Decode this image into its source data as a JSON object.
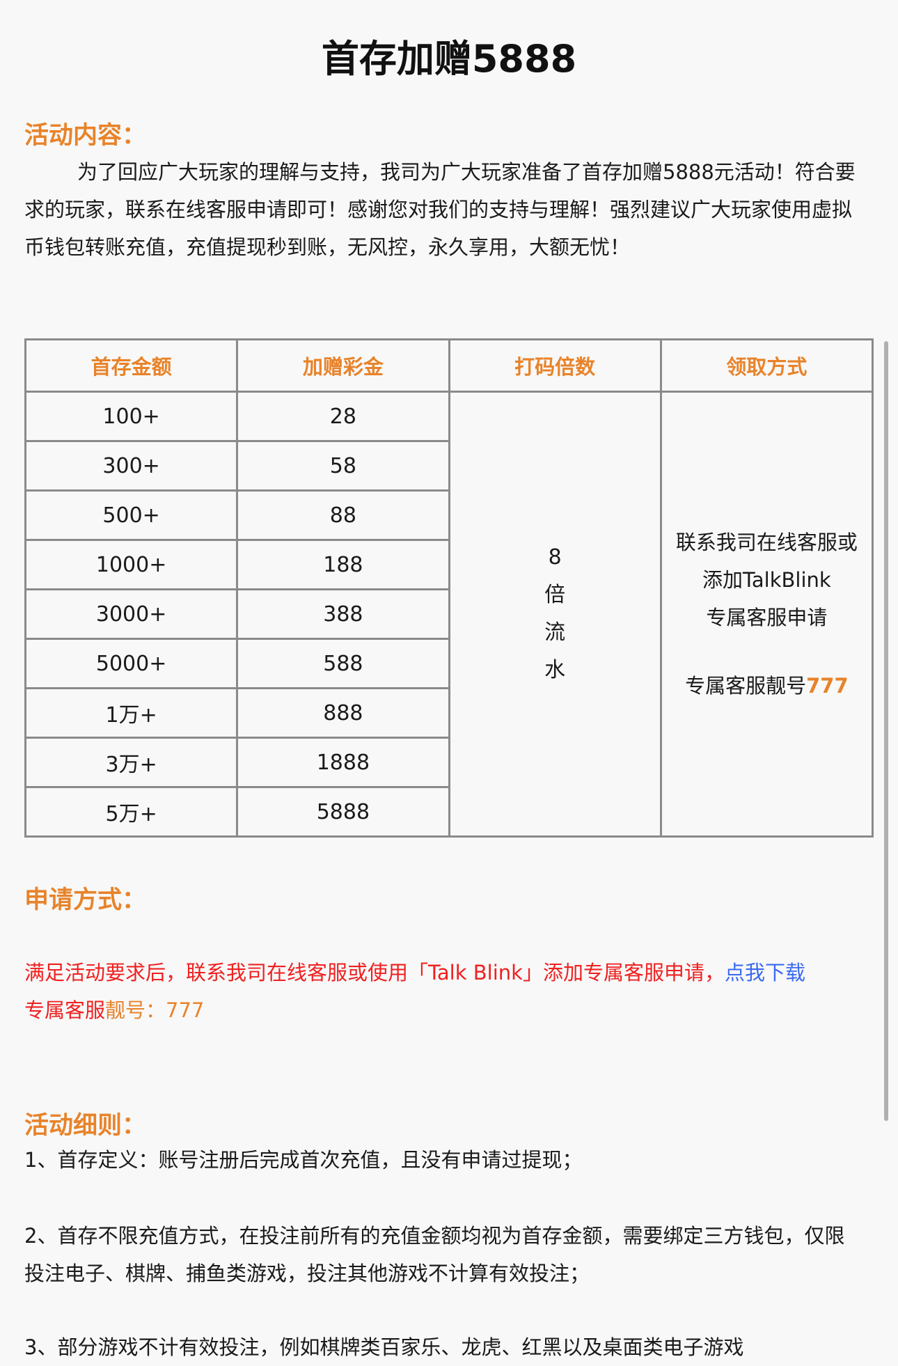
{
  "title": "首存加赠5888",
  "activity": {
    "heading": "活动内容：",
    "text": "为了回应广大玩家的理解与支持，我司为广大玩家准备了首存加赠5888元活动！符合要求的玩家，联系在线客服申请即可！感谢您对我们的支持与理解！强烈建议广大玩家使用虚拟币钱包转账充值，充值提现秒到账，无风控，永久享用，大额无忧！"
  },
  "table": {
    "headers": [
      "首存金额",
      "加赠彩金",
      "打码倍数",
      "领取方式"
    ],
    "rows": [
      {
        "deposit": "100+",
        "bonus": "28"
      },
      {
        "deposit": "300+",
        "bonus": "58"
      },
      {
        "deposit": "500+",
        "bonus": "88"
      },
      {
        "deposit": "1000+",
        "bonus": "188"
      },
      {
        "deposit": "3000+",
        "bonus": "388"
      },
      {
        "deposit": "5000+",
        "bonus": "588"
      },
      {
        "deposit": "1万+",
        "bonus": "888"
      },
      {
        "deposit": "3万+",
        "bonus": "1888"
      },
      {
        "deposit": "5万+",
        "bonus": "5888"
      }
    ],
    "multiplier": [
      "8",
      "倍",
      "流",
      "水"
    ],
    "claim_lines": [
      "联系我司在线客服或",
      "添加TalkBlink",
      "专属客服申请"
    ],
    "claim_account_label": "专属客服靓号",
    "claim_account_number": "777"
  },
  "apply": {
    "heading": "申请方式：",
    "text": "满足活动要求后，联系我司在线客服或使用「Talk Blink」添加专属客服申请，",
    "download_link": "点我下载",
    "account_prefix": "专属客服",
    "account_label": "靓号：777"
  },
  "rules": {
    "heading": "活动细则：",
    "items": [
      "1、首存定义：账号注册后完成首次充值，且没有申请过提现；",
      "2、首存不限充值方式，在投注前所有的充值金额均视为首存金额，需要绑定三方钱包，仅限投注电子、棋牌、捕鱼类游戏，投注其他游戏不计算有效投注；",
      "3、部分游戏不计有效投注，例如棋牌类百家乐、龙虎、红黑以及桌面类电子游戏"
    ]
  },
  "colors": {
    "accent": "#e8832a",
    "red": "#f02020",
    "link": "#3a6af0",
    "background": "#f8f8f8"
  }
}
